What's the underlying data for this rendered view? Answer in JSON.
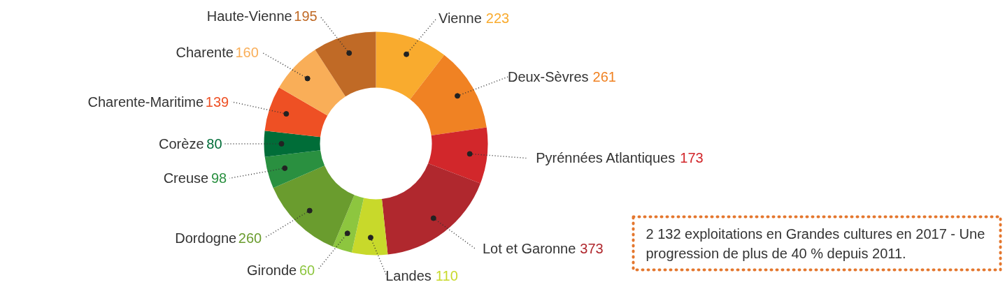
{
  "chart_data": {
    "type": "donut",
    "categories": [
      "Vienne",
      "Deux-Sèvres",
      "Pyrénnées Atlantiques",
      "Lot et Garonne",
      "Landes",
      "Gironde",
      "Dordogne",
      "Creuse",
      "Corèze",
      "Charente-Maritime",
      "Charente",
      "Haute-Vienne"
    ],
    "values": [
      223,
      261,
      173,
      373,
      110,
      60,
      260,
      98,
      80,
      139,
      160,
      195
    ],
    "colors": [
      "#f9ab2e",
      "#f08223",
      "#d2272b",
      "#b0282e",
      "#c8d92b",
      "#8dc63f",
      "#6a9c2e",
      "#2a9040",
      "#006d38",
      "#ee5024",
      "#f9ae58",
      "#c06a26"
    ],
    "data_labels": true,
    "annotations": [
      "2 132 exploitations en Grandes cultures en 2017 - Une progression de plus de 40 % depuis 2011."
    ]
  }
}
